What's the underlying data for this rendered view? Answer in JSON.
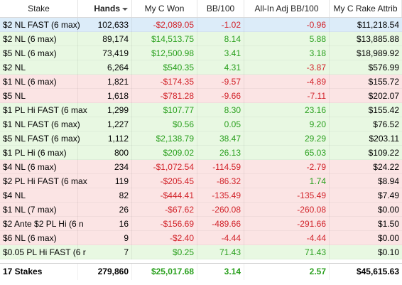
{
  "columns": [
    "Stake",
    "Hands",
    "My C Won",
    "BB/100",
    "All-In Adj BB/100",
    "My C Rake Attrib"
  ],
  "rows": [
    {
      "stake": "$2 NL FAST (6 max)",
      "hands": "102,633",
      "won": "-$2,089.05",
      "bb100": "-1.02",
      "adj": "-0.96",
      "rake": "$11,218.54",
      "won_sign": "neg",
      "bb_sign": "neg",
      "adj_sign": "neg",
      "tint": "sel"
    },
    {
      "stake": "$2 NL (6 max)",
      "hands": "89,174",
      "won": "$14,513.75",
      "bb100": "8.14",
      "adj": "5.88",
      "rake": "$13,885.88",
      "won_sign": "pos",
      "bb_sign": "pos",
      "adj_sign": "pos",
      "tint": "pos"
    },
    {
      "stake": "$5 NL (6 max)",
      "hands": "73,419",
      "won": "$12,500.98",
      "bb100": "3.41",
      "adj": "3.18",
      "rake": "$18,989.92",
      "won_sign": "pos",
      "bb_sign": "pos",
      "adj_sign": "pos",
      "tint": "pos"
    },
    {
      "stake": "$2 NL",
      "hands": "6,264",
      "won": "$540.35",
      "bb100": "4.31",
      "adj": "-3.87",
      "rake": "$576.99",
      "won_sign": "pos",
      "bb_sign": "pos",
      "adj_sign": "neg",
      "tint": "pos"
    },
    {
      "stake": "$1 NL (6 max)",
      "hands": "1,821",
      "won": "-$174.35",
      "bb100": "-9.57",
      "adj": "-4.89",
      "rake": "$155.72",
      "won_sign": "neg",
      "bb_sign": "neg",
      "adj_sign": "neg",
      "tint": "neg"
    },
    {
      "stake": "$5 NL",
      "hands": "1,618",
      "won": "-$781.28",
      "bb100": "-9.66",
      "adj": "-7.11",
      "rake": "$202.07",
      "won_sign": "neg",
      "bb_sign": "neg",
      "adj_sign": "neg",
      "tint": "neg"
    },
    {
      "stake": "$1 PL Hi FAST (6 max",
      "hands": "1,299",
      "won": "$107.77",
      "bb100": "8.30",
      "adj": "23.16",
      "rake": "$155.42",
      "won_sign": "pos",
      "bb_sign": "pos",
      "adj_sign": "pos",
      "tint": "pos"
    },
    {
      "stake": "$1 NL FAST (6 max)",
      "hands": "1,227",
      "won": "$0.56",
      "bb100": "0.05",
      "adj": "9.20",
      "rake": "$76.52",
      "won_sign": "pos",
      "bb_sign": "pos",
      "adj_sign": "pos",
      "tint": "pos"
    },
    {
      "stake": "$5 NL FAST (6 max)",
      "hands": "1,112",
      "won": "$2,138.79",
      "bb100": "38.47",
      "adj": "29.29",
      "rake": "$203.11",
      "won_sign": "pos",
      "bb_sign": "pos",
      "adj_sign": "pos",
      "tint": "pos"
    },
    {
      "stake": "$1 PL Hi (6 max)",
      "hands": "800",
      "won": "$209.02",
      "bb100": "26.13",
      "adj": "65.03",
      "rake": "$109.22",
      "won_sign": "pos",
      "bb_sign": "pos",
      "adj_sign": "pos",
      "tint": "pos"
    },
    {
      "stake": "$4 NL (6 max)",
      "hands": "234",
      "won": "-$1,072.54",
      "bb100": "-114.59",
      "adj": "-2.79",
      "rake": "$24.22",
      "won_sign": "neg",
      "bb_sign": "neg",
      "adj_sign": "neg",
      "tint": "neg"
    },
    {
      "stake": "$2 PL Hi FAST (6 max",
      "hands": "119",
      "won": "-$205.45",
      "bb100": "-86.32",
      "adj": "1.74",
      "rake": "$8.94",
      "won_sign": "neg",
      "bb_sign": "neg",
      "adj_sign": "pos",
      "tint": "neg"
    },
    {
      "stake": "$4 NL",
      "hands": "82",
      "won": "-$444.41",
      "bb100": "-135.49",
      "adj": "-135.49",
      "rake": "$7.49",
      "won_sign": "neg",
      "bb_sign": "neg",
      "adj_sign": "neg",
      "tint": "neg"
    },
    {
      "stake": "$1 NL (7 max)",
      "hands": "26",
      "won": "-$67.62",
      "bb100": "-260.08",
      "adj": "-260.08",
      "rake": "$0.00",
      "won_sign": "neg",
      "bb_sign": "neg",
      "adj_sign": "neg",
      "tint": "neg"
    },
    {
      "stake": "$2 Ante $2 PL Hi (6 n",
      "hands": "16",
      "won": "-$156.69",
      "bb100": "-489.66",
      "adj": "-291.66",
      "rake": "$1.50",
      "won_sign": "neg",
      "bb_sign": "neg",
      "adj_sign": "neg",
      "tint": "neg"
    },
    {
      "stake": "$6 NL (6 max)",
      "hands": "9",
      "won": "-$2.40",
      "bb100": "-4.44",
      "adj": "-4.44",
      "rake": "$0.00",
      "won_sign": "neg",
      "bb_sign": "neg",
      "adj_sign": "neg",
      "tint": "neg"
    },
    {
      "stake": "$0.05 PL Hi FAST (6 r",
      "hands": "7",
      "won": "$0.25",
      "bb100": "71.43",
      "adj": "71.43",
      "rake": "$0.10",
      "won_sign": "pos",
      "bb_sign": "pos",
      "adj_sign": "pos",
      "tint": "pos"
    }
  ],
  "totals": {
    "stake": "17 Stakes",
    "hands": "279,860",
    "won": "$25,017.68",
    "bb100": "3.14",
    "adj": "2.57",
    "rake": "$45,615.63"
  },
  "colors": {
    "positive": "#2aa01e",
    "negative": "#d2232a",
    "row_positive": "#e8f8e2",
    "row_negative": "#fbe4e4",
    "row_selected": "#dcecf9"
  },
  "sort": {
    "column": "Hands",
    "direction": "descending",
    "icon": "sort-descending-icon"
  }
}
